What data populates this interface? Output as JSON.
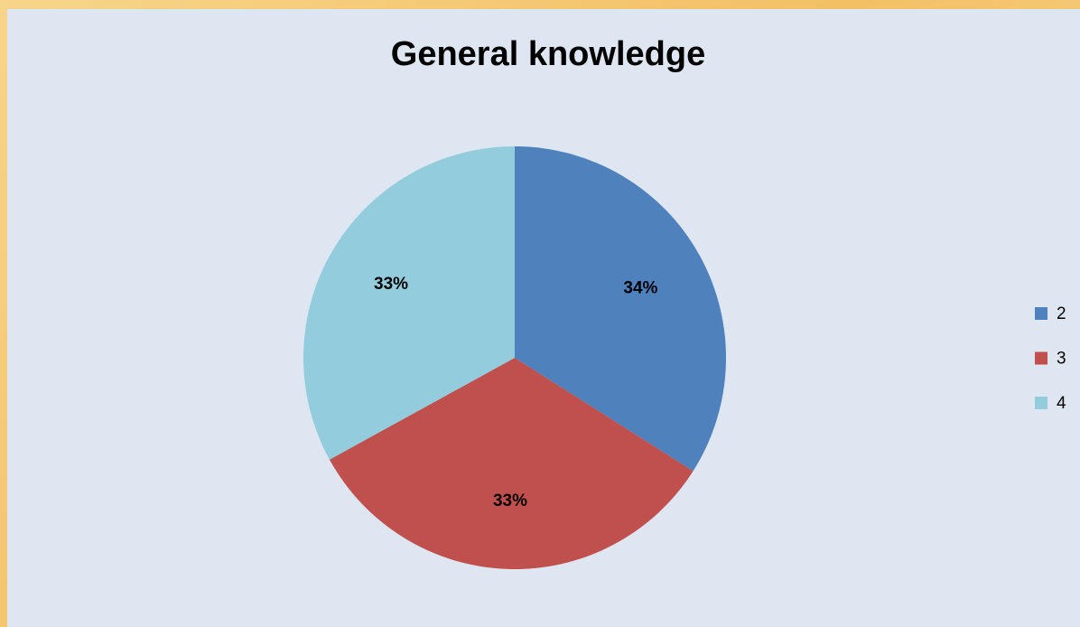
{
  "chart_data": {
    "type": "pie",
    "title": "General knowledge",
    "categories": [
      "2",
      "3",
      "4"
    ],
    "values": [
      34,
      33,
      33
    ],
    "value_labels": [
      "34%",
      "33%",
      "33%"
    ],
    "colors": [
      "#4f81bd",
      "#c0504d",
      "#93cddd"
    ],
    "legend": "right"
  }
}
